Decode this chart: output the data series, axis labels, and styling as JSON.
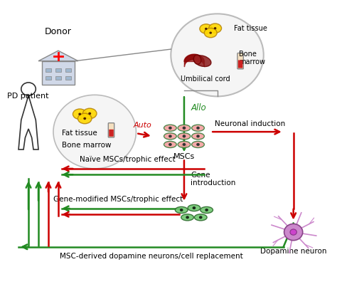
{
  "title": "",
  "background_color": "#ffffff",
  "labels": {
    "donor": "Donor",
    "pd_patient": "PD patient",
    "fat_tissue_top": "Fat tissue",
    "bone_marrow_top": "Bone\nmarrow",
    "umbilical_cord": "Umbilical cord",
    "fat_tissue_mid": "Fat tissue",
    "bone_marrow_mid": "Bone marrow",
    "auto": "Auto",
    "allo": "Allo",
    "mscs": "MSCs",
    "neuronal_induction": "Neuronal induction",
    "gene_introduction": "Gene\nintroduction",
    "naive_mscs": "Naïve MSCs/trophic effect",
    "gene_modified_mscs": "Gene-modified MSCs/trophic effect",
    "msc_derived": "MSC-derived dopamine neurons/cell replacement",
    "dopamine_neuron": "Dopamine neuron"
  },
  "colors": {
    "red_arrow": "#cc0000",
    "green_arrow": "#228B22",
    "green_text": "#228B22",
    "red_text": "#cc0000",
    "black_text": "#000000",
    "circle_fill": "#f0f0f0",
    "circle_edge": "#aaaaaa",
    "msc_pink": "#f08080",
    "msc_green": "#90ee90",
    "body_outline": "#555555"
  }
}
